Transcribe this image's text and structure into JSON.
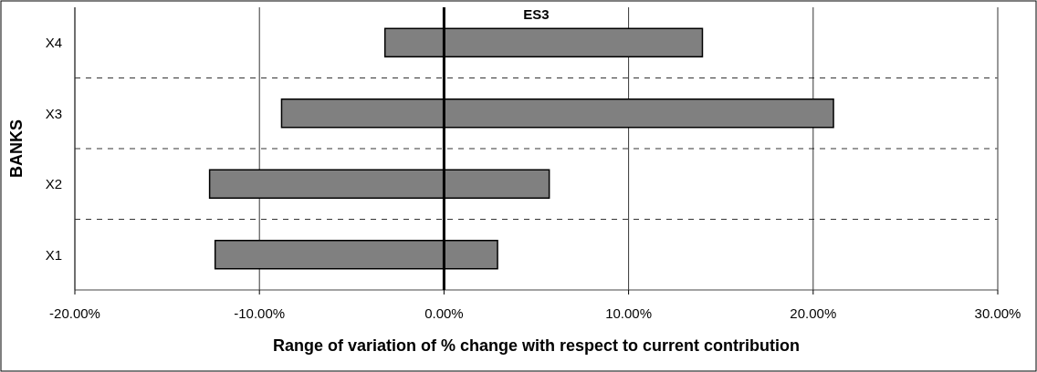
{
  "chart_data": {
    "type": "bar",
    "orientation": "horizontal",
    "title": "ES3",
    "xlabel": "Range of variation of % change with respect to current contribution",
    "ylabel": "BANKS",
    "categories": [
      "X4",
      "X3",
      "X2",
      "X1"
    ],
    "base": [
      -3.2,
      -8.8,
      -12.7,
      -12.4
    ],
    "values": [
      17.2,
      29.9,
      18.4,
      15.3
    ],
    "color": "#808080",
    "xlim": [
      -20,
      30
    ],
    "xticks": [
      {
        "value": -20,
        "label": "-20.00%"
      },
      {
        "value": -10,
        "label": "-10.00%"
      },
      {
        "value": 0,
        "label": "0.00%"
      },
      {
        "value": 10,
        "label": "10.00%"
      },
      {
        "value": 20,
        "label": "20.00%"
      },
      {
        "value": 30,
        "label": "30.00%"
      }
    ],
    "ref_lines": [
      {
        "axis": "x",
        "value": 0
      }
    ],
    "grid": true
  }
}
